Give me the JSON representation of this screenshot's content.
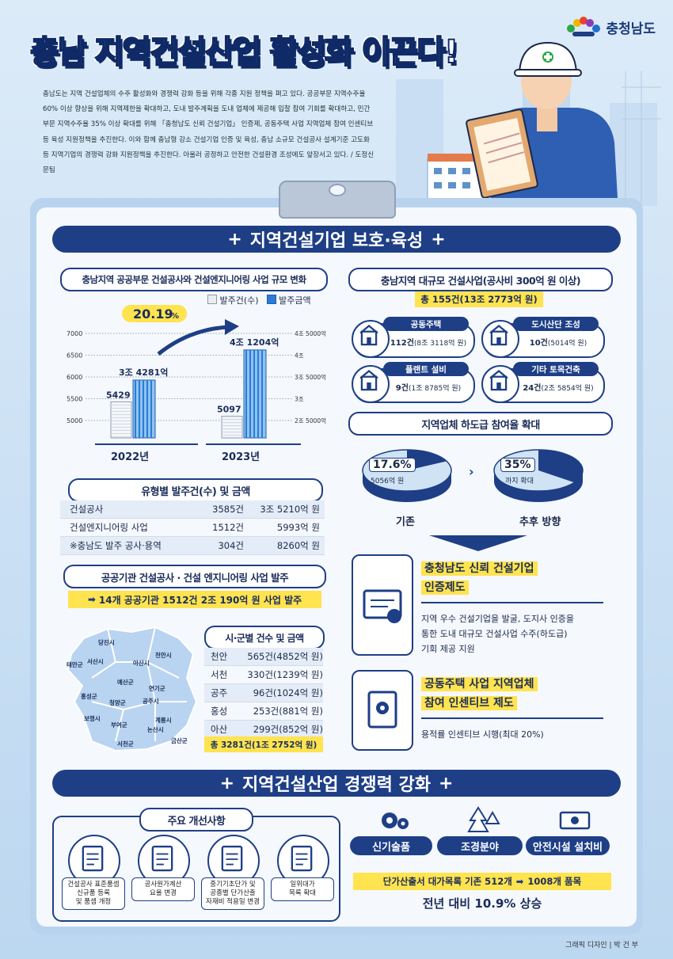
{
  "header": {
    "logo_text": "충청남도",
    "title_a": "충남 ",
    "title_b": "지역건설산업 활성화",
    "title_c": " 이끈다!",
    "intro": "충남도는 지역 건설업체의 수주 활성화와 경쟁력 강화 등을 위해 각종 지원 정책을 펴고 있다. 공공부문 지역수주율 60% 이상 향상을 위해 지역제한을 확대하고, 도내 발주계획을 도내 업체에 제공해 입찰 참여 기회를 확대하고, 민간부문 지역수주율 35% 이상 확대를 위해 「충청남도 신뢰 건설기업」 인증제, 공동주택 사업 지역업체 참여 인센티브 등 육성 지원정책을 추진한다. 이와 함께 충남형 강소 건설기업 인증 및 육성, 충남 소규모 건설공사 설계기준 고도화 등 지역기업의 경쟁력 강화 지원정책을 추진한다. 아울러 공정하고 안전한 건설환경 조성에도 앞장서고 있다.",
    "credit": " / 도정신문팀"
  },
  "section1": {
    "title": "지역건설기업 보호·육성",
    "plus": "+"
  },
  "chart": {
    "title": "충남지역 공공부문 건설공사와 건설엔지니어링 사업 규모 변화"
  },
  "chart_data": {
    "type": "bar",
    "categories": [
      "2022년",
      "2023년"
    ],
    "series": [
      {
        "name": "발주건(수)",
        "values": [
          5429,
          5097
        ],
        "labels": [
          "5429",
          "5097"
        ]
      },
      {
        "name": "발주금액",
        "values": [
          3.4281,
          4.1204
        ],
        "labels": [
          "3조 4281억",
          "4조 1204억"
        ]
      }
    ],
    "y_left": {
      "ticks": [
        "7000",
        "6500",
        "6000",
        "5500",
        "5000"
      ],
      "range": [
        4800,
        7100
      ]
    },
    "y_right": {
      "ticks": [
        "4조 5000억",
        "4조",
        "3조 5000억",
        "3조",
        "2조 5000억"
      ],
      "range": [
        2.3,
        4.65
      ]
    },
    "legend_position": "top-right",
    "annotation": "20.19",
    "annotation_unit": "%",
    "grid": true
  },
  "type_table": {
    "title": "유형별 발주건(수) 및 금액",
    "rows": [
      {
        "name": "건설공사",
        "count": "3585건",
        "amount": "3조 5210억 원"
      },
      {
        "name": "건설엔지니어링 사업",
        "count": "1512건",
        "amount": "5993억 원"
      },
      {
        "name": "※충남도 발주 공사·용역",
        "count": "304건",
        "amount": "8260억 원"
      }
    ]
  },
  "public": {
    "title": "공공기관 건설공사 · 건설 엔지니어링 사업 발주",
    "highlight": "14개 공공기관 1512건 2조 190억 원 사업 발주",
    "arrow": "➡"
  },
  "map": {
    "labels": [
      "당진시",
      "서산시",
      "태안군",
      "아산시",
      "천안시",
      "예산군",
      "홍성군",
      "청양군",
      "공주시",
      "연기군",
      "보령시",
      "부여군",
      "계룡시",
      "논산시",
      "서천군",
      "금산군"
    ]
  },
  "city_table": {
    "title": "시·군별 건수 및 금액",
    "rows": [
      {
        "name": "천안",
        "value": "565건(4852억 원)"
      },
      {
        "name": "서천",
        "value": "330건(1239억 원)"
      },
      {
        "name": "공주",
        "value": "96건(1024억 원)"
      },
      {
        "name": "홍성",
        "value": "253건(881억 원)"
      },
      {
        "name": "아산",
        "value": "299건(852억 원)"
      }
    ],
    "total": "총 3281건(1조 2752억 원)"
  },
  "large": {
    "title": "충남지역 대규모 건설사업(공사비 300억 원 이상)",
    "total": "총 155건(13조 2773억 원)",
    "cards": [
      {
        "name": "공동주택",
        "count": "112건",
        "amount": "(8조 3118억 원)",
        "icon": "building-icon"
      },
      {
        "name": "도시산단 조성",
        "count": "10건",
        "amount": "(5014억 원)",
        "icon": "city-icon"
      },
      {
        "name": "플랜트 설비",
        "count": "9건",
        "amount": "(1조 8785억 원)",
        "icon": "factory-icon"
      },
      {
        "name": "기타 토목건축",
        "count": "24건",
        "amount": "(2조 5854억 원)",
        "icon": "worker-icon"
      }
    ]
  },
  "subcontract": {
    "title": "지역업체 하도급 참여율 확대",
    "before_pct": "17.6%",
    "before_sub": "5056억 원",
    "before_label": "기존",
    "before_value": 17.6,
    "after_pct": "35%",
    "after_sub": "까지 확대",
    "after_label": "추후 방향",
    "after_value": 35
  },
  "policies": [
    {
      "title1": "충청남도 신뢰 건설기업",
      "title2": "인증제도",
      "desc1": "지역 우수 건설기업을 발굴, 도지사 인증을",
      "desc2": "통한 도내 대규모 건설사업 수주(하도급)",
      "desc3": "기회 제공 지원"
    },
    {
      "title1": "공동주택 사업 지역업체",
      "title2": "참여 인센티브 제도",
      "desc1": "용적률 인센티브 시행(최대 20%)",
      "desc2": "",
      "desc3": ""
    }
  ],
  "section2": {
    "title": "지역건설산업 경쟁력 강화",
    "plus": "+"
  },
  "improve": {
    "title": "주요 개선사항",
    "items": [
      {
        "l1": "건설공사 표준품셈",
        "l2": "신규품 등록",
        "l3": "및 품셈 개정"
      },
      {
        "l1": "공사원가계산",
        "l2": "요율 변경",
        "l3": ""
      },
      {
        "l1": "중기기초단가 및",
        "l2": "공종별 단가산출",
        "l3": "자재비 적용일 변경"
      },
      {
        "l1": "일위대가",
        "l2": "목록 확대",
        "l3": ""
      }
    ]
  },
  "unit_price": {
    "categories": [
      "신기술품",
      "조경분야",
      "안전시설 설치비"
    ],
    "highlight_a": "단가산출서 대가목록 기존 512개",
    "arrow": "➡",
    "highlight_b": "1008개 품목",
    "result": "전년 대비 10.9% 상승"
  },
  "footer": {
    "text": "그래픽 디자인  |  박 건 부"
  },
  "colors": {
    "navy": "#1e3f86",
    "yellow": "#ffe34f",
    "blue": "#2c7bd6",
    "light": "#cfe3f5"
  }
}
